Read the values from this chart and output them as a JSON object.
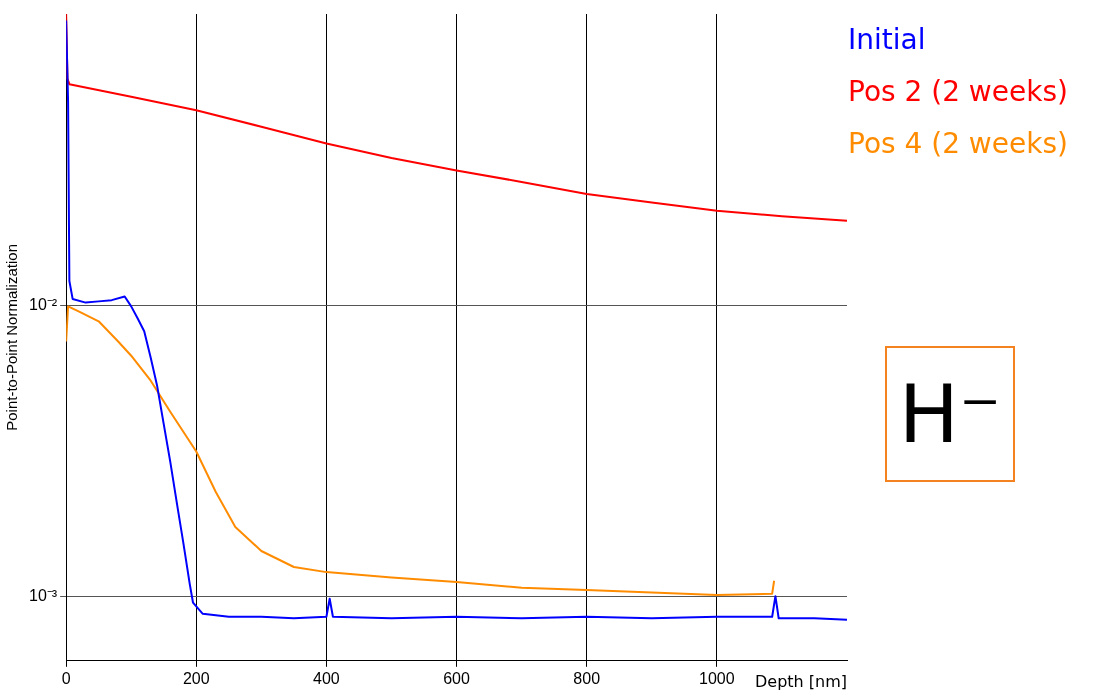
{
  "chart_data": {
    "type": "line",
    "xlabel": "Depth [nm]",
    "ylabel": "Point-to-Point Normalization",
    "xlim": [
      0,
      1200
    ],
    "xticks": [
      0,
      200,
      400,
      600,
      800,
      1000
    ],
    "ylim": [
      0.0006,
      0.1
    ],
    "yticks": [
      {
        "value": 0.01,
        "label": "10⁻²"
      },
      {
        "value": 0.001,
        "label": "10⁻³"
      }
    ],
    "log": "y",
    "grid": true,
    "legend": "top right",
    "marker": "none",
    "line_style": "solid",
    "annotations": [
      "H⁻"
    ],
    "series": [
      {
        "name": "Initial",
        "color": "#0000ff",
        "x": [
          0,
          3,
          5,
          10,
          30,
          50,
          70,
          90,
          100,
          110,
          120,
          130,
          140,
          150,
          160,
          170,
          180,
          190,
          195,
          210,
          250,
          300,
          350,
          400,
          405,
          410,
          500,
          600,
          700,
          800,
          900,
          1000,
          1085,
          1090,
          1095,
          1150,
          1200
        ],
        "values": [
          0.095,
          0.05,
          0.0121,
          0.0105,
          0.0102,
          0.0103,
          0.0104,
          0.0107,
          0.0099,
          0.009,
          0.00813,
          0.0066,
          0.00526,
          0.0039,
          0.0029,
          0.0021,
          0.00153,
          0.0011,
          0.00095,
          0.00087,
          0.00085,
          0.00085,
          0.00084,
          0.00085,
          0.00098,
          0.00085,
          0.00084,
          0.00085,
          0.00084,
          0.00085,
          0.00084,
          0.00085,
          0.00085,
          0.001,
          0.00084,
          0.00084,
          0.00083
        ]
      },
      {
        "name": "Pos 2 (2 weeks)",
        "color": "#ff0000",
        "x": [
          0,
          2,
          5,
          100,
          200,
          300,
          400,
          500,
          600,
          700,
          800,
          900,
          1000,
          1100,
          1200
        ],
        "values": [
          0.1,
          0.06,
          0.0574,
          0.052,
          0.0467,
          0.041,
          0.0359,
          0.032,
          0.029,
          0.0265,
          0.0241,
          0.0225,
          0.0211,
          0.0202,
          0.0195
        ]
      },
      {
        "name": "Pos 4 (2 weeks)",
        "color": "#ff8c00",
        "x": [
          0,
          3,
          20,
          50,
          80,
          100,
          130,
          160,
          200,
          230,
          260,
          300,
          350,
          400,
          500,
          600,
          700,
          800,
          900,
          1000,
          1085,
          1088
        ],
        "values": [
          0.0075,
          0.0099,
          0.0095,
          0.0088,
          0.0075,
          0.0067,
          0.0055,
          0.0043,
          0.00314,
          0.00228,
          0.00173,
          0.00143,
          0.00126,
          0.00121,
          0.00116,
          0.00112,
          0.00107,
          0.00105,
          0.00103,
          0.00101,
          0.00102,
          0.00113
        ]
      }
    ]
  }
}
